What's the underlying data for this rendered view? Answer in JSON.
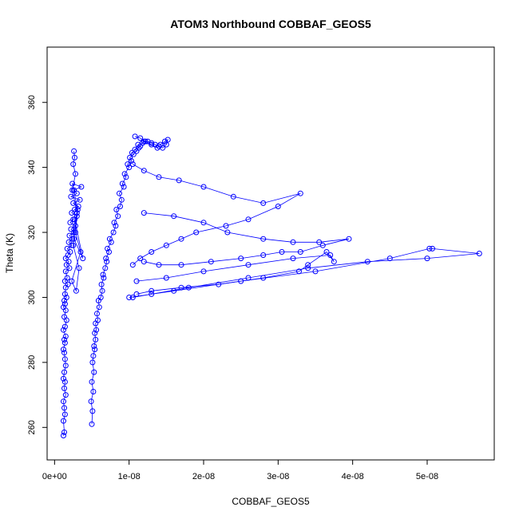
{
  "chart_data": {
    "type": "scatter",
    "title": "ATOM3 Northbound COBBAF_GEOS5",
    "xlabel": "COBBAF_GEOS5",
    "ylabel": "Theta (K)",
    "xlim": [
      -1e-09,
      5.9e-08
    ],
    "ylim": [
      250,
      377
    ],
    "x_ticks": [
      0,
      1e-08,
      2e-08,
      3e-08,
      4e-08,
      5e-08
    ],
    "x_tick_labels": [
      "0e+00",
      "1e-08",
      "2e-08",
      "3e-08",
      "4e-08",
      "5e-08"
    ],
    "y_ticks": [
      260,
      280,
      300,
      320,
      340,
      360
    ],
    "y_tick_labels": [
      "260",
      "280",
      "300",
      "320",
      "340",
      "360"
    ],
    "grid": false,
    "marker": "open-circle",
    "connected": true,
    "color": "#0000ff",
    "series": [
      {
        "x": [
          1.2e-09,
          1.3e-09,
          1.2e-09,
          1.4e-09,
          1.3e-09,
          1.2e-09,
          1.5e-09,
          1.3e-09,
          1.4e-09,
          1.2e-09,
          1.3e-09,
          1.5e-09,
          1.4e-09,
          1.3e-09,
          1.2e-09,
          1.4e-09,
          1.3e-09,
          1.5e-09,
          1.2e-09,
          1.4e-09,
          1.6e-09,
          1.3e-09,
          1.5e-09,
          1.2e-09,
          1.4e-09,
          1.3e-09,
          1.6e-09,
          1.4e-09,
          1.5e-09,
          1.8e-09,
          1.4e-09,
          1.7e-09,
          1.5e-09,
          2e-09,
          1.6e-09,
          1.9e-09,
          1.5e-09,
          1.8e-09,
          2.1e-09,
          1.7e-09,
          2.3e-09,
          1.9e-09,
          2.4e-09,
          2e-09,
          2.6e-09,
          2.2e-09,
          2.8e-09,
          2.1e-09,
          2.5e-09,
          3e-09,
          2.3e-09,
          2.7e-09,
          3.2e-09,
          2.5e-09,
          3.4e-09,
          2.2e-09,
          3e-09,
          2.6e-09,
          3.6e-09,
          2.4e-09,
          3.1e-09,
          2.8e-09,
          3.5e-09,
          2.3e-09,
          2.9e-09,
          3.3e-09,
          2.5e-09,
          2.7e-09,
          3.8e-09,
          2.6e-09,
          3e-09,
          2.4e-09,
          2.8e-09,
          2.5e-09,
          2.7e-09,
          2.6e-09
        ],
        "y": [
          257.5,
          258.5,
          262,
          264,
          266,
          268,
          270,
          272,
          274,
          275,
          277,
          279,
          281,
          283,
          284,
          286,
          287,
          288,
          290,
          291,
          293,
          294,
          296,
          297,
          298,
          299,
          300,
          301,
          303,
          304,
          305,
          306,
          308,
          309,
          310,
          311,
          312,
          313,
          314,
          315,
          316,
          317,
          318,
          319,
          320,
          321,
          322,
          323,
          324,
          325,
          326,
          327,
          328,
          329,
          330,
          331,
          332,
          333,
          334,
          335,
          327,
          320,
          314,
          305,
          302,
          309,
          316,
          324,
          312,
          318,
          326,
          333,
          338,
          341,
          343,
          345
        ]
      },
      {
        "x": [
          5e-09,
          5.1e-09,
          4.9e-09,
          5.2e-09,
          5e-09,
          5.3e-09,
          5.1e-09,
          5.2e-09,
          5.4e-09,
          5.3e-09,
          5.5e-09,
          5.4e-09,
          5.6e-09,
          5.5e-09,
          5.8e-09,
          5.7e-09,
          6e-09,
          5.9e-09,
          6.2e-09,
          6.4e-09,
          6.3e-09,
          6.6e-09,
          6.5e-09,
          6.8e-09,
          7e-09,
          6.9e-09,
          7.3e-09,
          7.1e-09,
          7.6e-09,
          7.4e-09,
          7.9e-09,
          8.2e-09,
          8e-09,
          8.5e-09,
          8.3e-09,
          8.8e-09,
          9e-09,
          8.7e-09,
          9.3e-09,
          9.1e-09,
          9.6e-09,
          9.4e-09,
          1e-08,
          9.8e-09,
          1.03e-08,
          1.01e-08,
          1.06e-08,
          1.04e-08,
          1.1e-08,
          1.08e-08,
          1.13e-08,
          1.15e-08,
          1.12e-08,
          1.18e-08,
          1.2e-08,
          1.25e-08,
          1.3e-08,
          1.35e-08,
          1.4e-08,
          1.45e-08,
          1.5e-08,
          1.52e-08,
          1.48e-08,
          1.42e-08,
          1.38e-08,
          1.3e-08,
          1.22e-08,
          1.15e-08,
          1.08e-08
        ],
        "y": [
          261,
          265,
          268,
          271,
          274,
          277,
          280,
          282,
          284,
          285,
          287,
          289,
          290,
          292,
          293,
          295,
          297,
          299,
          300,
          302,
          304,
          306,
          307,
          309,
          311,
          312,
          314,
          315,
          317,
          318,
          320,
          322,
          323,
          325,
          327,
          328,
          330,
          332,
          334,
          335,
          337,
          338,
          340,
          341,
          342,
          343,
          344,
          344.5,
          345,
          345.5,
          346,
          346.5,
          347,
          347.5,
          348,
          348,
          347.5,
          347,
          346.5,
          346,
          347,
          348.5,
          348,
          347,
          346,
          347,
          348,
          349,
          349.5
        ]
      },
      {
        "x": [
          1.05e-08,
          1.2e-08,
          1.4e-08,
          1.67e-08,
          2e-08,
          2.4e-08,
          2.8e-08,
          3.3e-08,
          3e-08,
          2.6e-08,
          2.3e-08,
          1.9e-08,
          1.7e-08,
          1.5e-08,
          1.3e-08,
          1.15e-08,
          1.05e-08
        ],
        "y": [
          341,
          339,
          337,
          336,
          334,
          331,
          329,
          332,
          328,
          324,
          322,
          320,
          318,
          316,
          314,
          312,
          310
        ]
      },
      {
        "x": [
          1.2e-08,
          1.6e-08,
          2e-08,
          2.32e-08,
          2.8e-08,
          3.2e-08,
          3.55e-08,
          3.95e-08,
          3.6e-08,
          3.3e-08,
          3.05e-08,
          2.8e-08,
          2.5e-08,
          2.1e-08,
          1.7e-08,
          1.4e-08,
          1.2e-08
        ],
        "y": [
          326,
          325,
          323,
          320,
          318,
          317,
          317,
          318,
          316,
          314,
          314,
          313,
          312,
          311,
          310,
          310,
          311
        ]
      },
      {
        "x": [
          1.1e-08,
          1.5e-08,
          2e-08,
          2.6e-08,
          3.2e-08,
          3.7e-08,
          3.75e-08,
          3.65e-08,
          3.4e-08,
          3.28e-08,
          2.8e-08,
          2.2e-08,
          1.7e-08,
          1.3e-08,
          1.1e-08
        ],
        "y": [
          305,
          306,
          308,
          310,
          312,
          313,
          311,
          314,
          310,
          308,
          306,
          304,
          303,
          302,
          301
        ]
      },
      {
        "x": [
          1e-08,
          1.6e-08,
          2.5e-08,
          3.5e-08,
          4.5e-08,
          5.03e-08,
          5.07e-08,
          5.7e-08,
          5e-08,
          4.2e-08,
          3.4e-08,
          2.6e-08,
          1.8e-08,
          1.3e-08,
          1.05e-08
        ],
        "y": [
          300,
          302,
          305,
          308,
          312,
          315,
          315,
          313.5,
          312,
          311,
          309,
          306,
          303,
          301,
          300
        ]
      }
    ]
  }
}
